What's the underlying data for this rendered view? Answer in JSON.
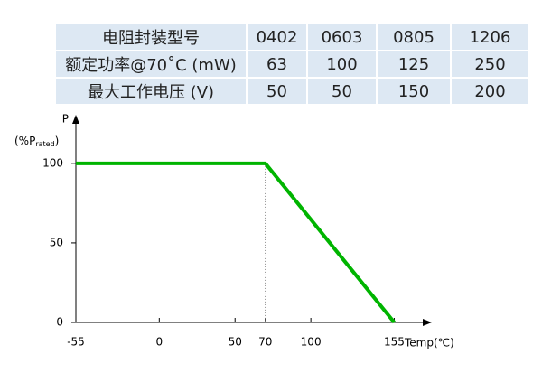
{
  "table": {
    "rows": [
      [
        "电阻封装型号",
        "0402",
        "0603",
        "0805",
        "1206"
      ],
      [
        "额定功率@70˚C (mW)",
        "63",
        "100",
        "125",
        "250"
      ],
      [
        "最大工作电压 (V)",
        "50",
        "50",
        "150",
        "200"
      ]
    ]
  },
  "chart_data": {
    "type": "line",
    "y_label": "P",
    "y_unit": [
      "(%P",
      "rated",
      ")"
    ],
    "x_label": "Temp(℃)",
    "x": [
      -55,
      70,
      155
    ],
    "values": [
      100,
      100,
      0
    ],
    "color": "#00b400",
    "xlim": [
      -55,
      175
    ],
    "xticks": [
      -55,
      0,
      50,
      70,
      100,
      155
    ],
    "ylim": [
      0,
      130
    ],
    "yticks": [
      0,
      50,
      100
    ]
  }
}
